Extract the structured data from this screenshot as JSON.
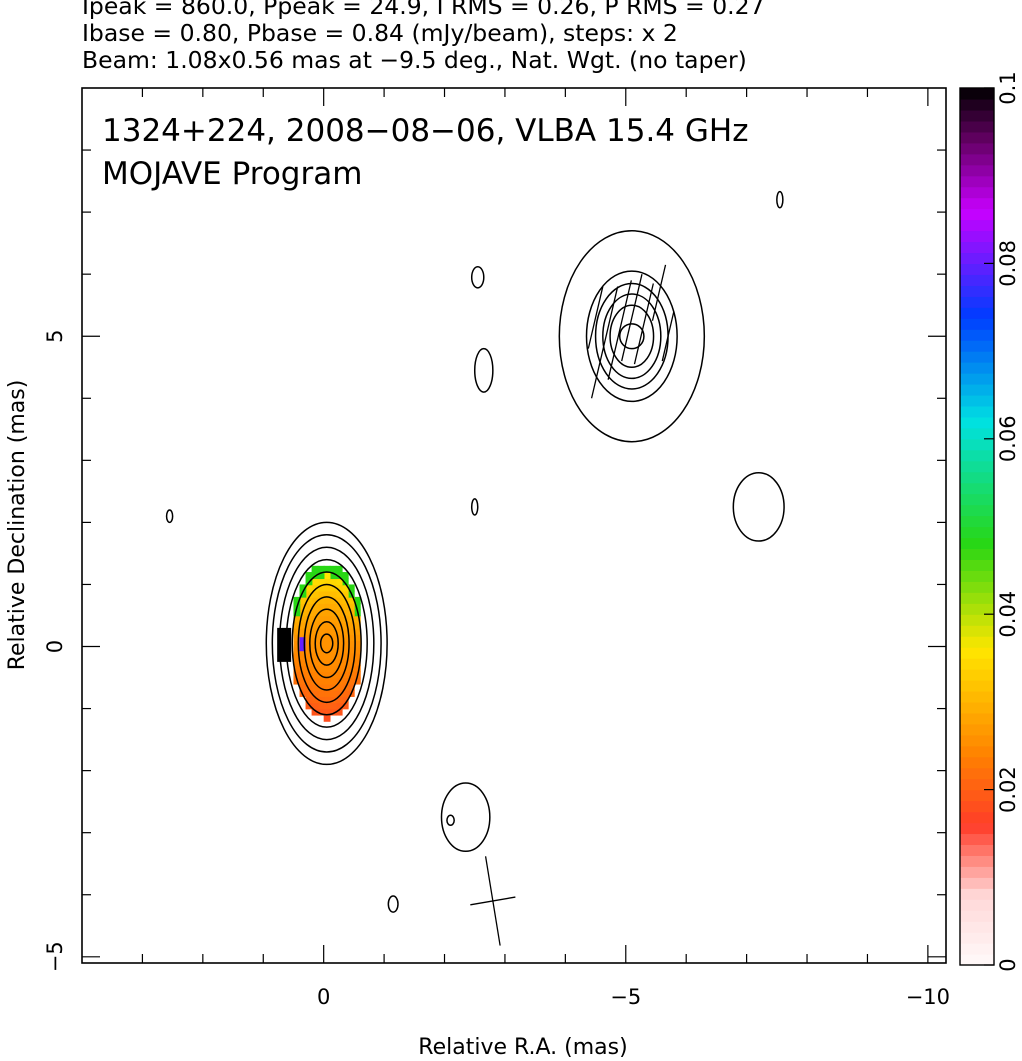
{
  "header_lines": [
    "Ipeak = 860.0, Ppeak = 24.9, I RMS = 0.26, P RMS = 0.27",
    "Ibase = 0.80, Pbase = 0.84 (mJy/beam), steps: x 2",
    "Beam: 1.08x0.56 mas at −9.5 deg., Nat. Wgt. (no taper)"
  ],
  "chart_data": {
    "type": "heatmap",
    "title_lines": [
      "1324+224, 2008−08−06, VLBA 15.4 GHz",
      "MOJAVE Program"
    ],
    "xlabel": "Relative R.A. (mas)",
    "ylabel": "Relative Declination (mas)",
    "xlim": [
      4,
      -10.3
    ],
    "ylim": [
      -5.1,
      9
    ],
    "x_ticks": [
      0,
      -5,
      -10
    ],
    "x_tick_labels": [
      "0",
      "−5",
      "−10"
    ],
    "y_ticks": [
      -5,
      0,
      5
    ],
    "y_tick_labels": [
      "−5",
      "0",
      "5"
    ],
    "colorbar": {
      "min": 0,
      "max": 0.1,
      "ticks": [
        0,
        0.02,
        0.04,
        0.06,
        0.08,
        0.1
      ],
      "tick_labels": [
        "0",
        "0.02",
        "0.04",
        "0.06",
        "0.08",
        "0.1"
      ]
    },
    "core_contours": {
      "center": [
        -0.05,
        0.05
      ],
      "radii_x": [
        1.0,
        0.9,
        0.78,
        0.67,
        0.57,
        0.47,
        0.37,
        0.28,
        0.19,
        0.1
      ],
      "radii_y": [
        1.95,
        1.75,
        1.55,
        1.35,
        1.15,
        0.95,
        0.75,
        0.55,
        0.35,
        0.15
      ]
    },
    "jet_component": {
      "center": [
        -5.1,
        5.0
      ],
      "radii_x": [
        1.2,
        0.75,
        0.6,
        0.48,
        0.36,
        0.2
      ],
      "radii_y": [
        1.7,
        1.05,
        0.85,
        0.68,
        0.5,
        0.2
      ]
    },
    "noise_contours": [
      {
        "x": 2.55,
        "y": 2.1,
        "rx": 0.05,
        "ry": 0.1
      },
      {
        "x": -2.55,
        "y": 5.95,
        "rx": 0.1,
        "ry": 0.17
      },
      {
        "x": -2.65,
        "y": 4.45,
        "rx": 0.15,
        "ry": 0.35
      },
      {
        "x": -2.5,
        "y": 2.25,
        "rx": 0.05,
        "ry": 0.13
      },
      {
        "x": -7.55,
        "y": 7.2,
        "rx": 0.05,
        "ry": 0.13
      },
      {
        "x": -7.2,
        "y": 2.25,
        "rx": 0.42,
        "ry": 0.55
      },
      {
        "x": -2.35,
        "y": -2.75,
        "rx": 0.4,
        "ry": 0.55
      },
      {
        "x": -2.1,
        "y": -2.8,
        "rx": 0.06,
        "ry": 0.08
      },
      {
        "x": -1.15,
        "y": -4.15,
        "rx": 0.08,
        "ry": 0.13
      }
    ],
    "polarization": {
      "center": [
        -0.05,
        0.1
      ],
      "rx": 0.6,
      "ry": 1.25,
      "core_fraction": 0.026,
      "edge_fraction": 0.04,
      "hot_spot": {
        "x": 0.75,
        "y": 0.05,
        "fraction": 0.1
      }
    },
    "evpa_ticks": [
      {
        "x": -4.65,
        "y": 4.9,
        "len": 1.8
      },
      {
        "x": -4.9,
        "y": 5.1,
        "len": 1.6
      },
      {
        "x": -5.1,
        "y": 5.3,
        "len": 1.4
      },
      {
        "x": -5.3,
        "y": 5.2,
        "len": 1.3
      },
      {
        "x": -5.55,
        "y": 5.7,
        "len": 0.9
      },
      {
        "x": -4.5,
        "y": 5.3,
        "len": 1.0
      },
      {
        "x": -5.7,
        "y": 5.0,
        "len": 0.8
      }
    ],
    "beam": {
      "x": -2.8,
      "y": -4.1,
      "major": 1.08,
      "minor": 0.56,
      "pa_deg": -9.5
    }
  }
}
